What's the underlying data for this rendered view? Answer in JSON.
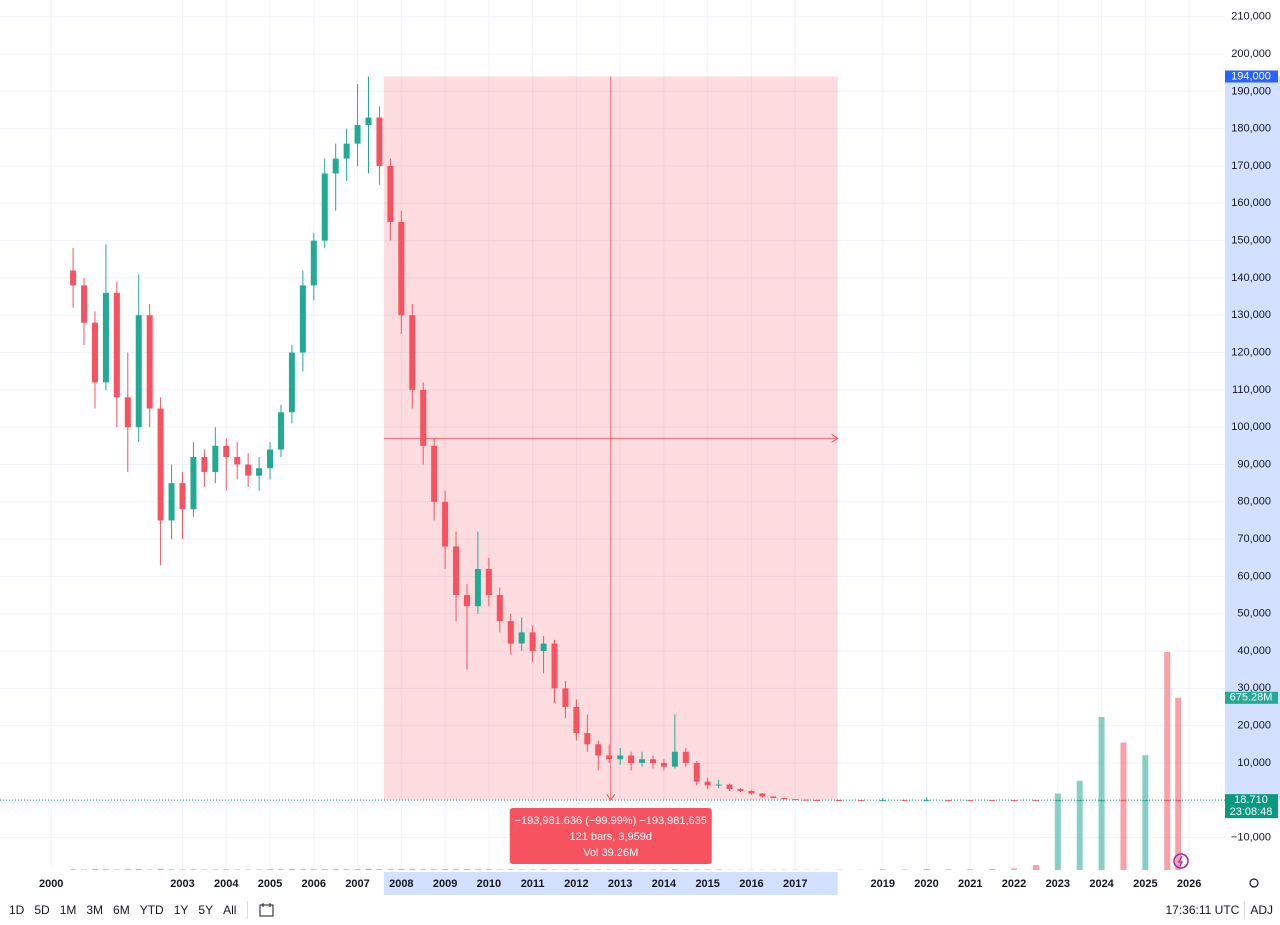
{
  "chart_data": {
    "type": "candlestick",
    "xlim": [
      1998.83,
      2026.82
    ],
    "ylim": [
      -18700,
      214500
    ],
    "vlim": [
      0,
      1000
    ],
    "grid": true,
    "up_color": "#22ab94",
    "down_color": "#f7525f",
    "xticks": [
      2000,
      2003,
      2004,
      2005,
      2006,
      2007,
      2008,
      2009,
      2010,
      2011,
      2012,
      2013,
      2014,
      2015,
      2016,
      2017,
      2019,
      2020,
      2021,
      2022,
      2023,
      2024,
      2025,
      2026
    ],
    "yticks": [
      {
        "value": 210000,
        "label": "210,000"
      },
      {
        "value": 200000,
        "label": "200,000"
      },
      {
        "value": 190000,
        "label": "190,000"
      },
      {
        "value": 180000,
        "label": "180,000"
      },
      {
        "value": 170000,
        "label": "170,000"
      },
      {
        "value": 160000,
        "label": "160,000"
      },
      {
        "value": 150000,
        "label": "150,000"
      },
      {
        "value": 140000,
        "label": "140,000"
      },
      {
        "value": 130000,
        "label": "130,000"
      },
      {
        "value": 120000,
        "label": "120,000"
      },
      {
        "value": 110000,
        "label": "110,000"
      },
      {
        "value": 100000,
        "label": "100,000"
      },
      {
        "value": 90000,
        "label": "90,000"
      },
      {
        "value": 80000,
        "label": "80,000"
      },
      {
        "value": 70000,
        "label": "70,000"
      },
      {
        "value": 60000,
        "label": "60,000"
      },
      {
        "value": 50000,
        "label": "50,000"
      },
      {
        "value": 40000,
        "label": "40,000"
      },
      {
        "value": 30000,
        "label": "30,000"
      },
      {
        "value": 20000,
        "label": "20,000"
      },
      {
        "value": 10000,
        "label": "10,000"
      },
      {
        "value": -10000,
        "label": "−10,000"
      }
    ],
    "x": [
      2000.5,
      2000.75,
      2001,
      2001.25,
      2001.5,
      2001.75,
      2002,
      2002.25,
      2002.5,
      2002.75,
      2003,
      2003.25,
      2003.5,
      2003.75,
      2004,
      2004.25,
      2004.5,
      2004.75,
      2005,
      2005.25,
      2005.5,
      2005.75,
      2006,
      2006.25,
      2006.5,
      2006.75,
      2007,
      2007.25,
      2007.5,
      2007.75,
      2008,
      2008.25,
      2008.5,
      2008.75,
      2009,
      2009.25,
      2009.5,
      2009.75,
      2010,
      2010.25,
      2010.5,
      2010.75,
      2011,
      2011.25,
      2011.5,
      2011.75,
      2012,
      2012.25,
      2012.5,
      2012.75,
      2013,
      2013.25,
      2013.5,
      2013.75,
      2014,
      2014.25,
      2014.5,
      2014.75,
      2015,
      2015.25,
      2015.5,
      2015.75,
      2016,
      2016.25,
      2016.5,
      2016.75,
      2017,
      2017.25,
      2017.5,
      2018,
      2018.5,
      2019,
      2019.5,
      2020,
      2020.5,
      2021,
      2021.5,
      2022,
      2022.5,
      2023,
      2023.5,
      2024,
      2024.5,
      2025,
      2025.5,
      2025.75
    ],
    "open": [
      142000,
      138000,
      128000,
      112000,
      136000,
      108000,
      100000,
      130000,
      105000,
      75000,
      85000,
      78000,
      92000,
      88000,
      95000,
      92000,
      90000,
      87000,
      89000,
      94000,
      104000,
      120000,
      138000,
      150000,
      168000,
      172000,
      176000,
      181000,
      183000,
      170000,
      155000,
      130000,
      110000,
      95000,
      80000,
      68000,
      55000,
      52000,
      62000,
      55000,
      48000,
      42000,
      45000,
      40000,
      42000,
      30000,
      25000,
      18000,
      15000,
      12000,
      11000,
      12000,
      10000,
      11000,
      10000,
      9000,
      13000,
      10000,
      5000,
      4000,
      4200,
      3000,
      2500,
      1800,
      1000,
      600,
      300,
      150,
      80,
      50,
      30,
      20,
      25,
      18,
      22,
      12,
      10,
      8,
      6,
      5,
      9,
      11,
      18,
      15,
      24,
      20
    ],
    "high": [
      148000,
      140000,
      131000,
      149000,
      139000,
      120000,
      141000,
      133000,
      108000,
      90000,
      88000,
      96000,
      94000,
      100000,
      97000,
      96000,
      93000,
      92000,
      96000,
      106000,
      122000,
      142000,
      152000,
      172000,
      176000,
      180000,
      192000,
      194000,
      186000,
      172000,
      158000,
      133000,
      112000,
      97000,
      83000,
      72000,
      58000,
      72000,
      65000,
      57000,
      50000,
      49000,
      47000,
      44000,
      43000,
      32000,
      27000,
      23000,
      16000,
      15000,
      14000,
      13000,
      13000,
      12000,
      11000,
      23000,
      14000,
      10500,
      6000,
      5500,
      4500,
      3200,
      2700,
      1900,
      1100,
      700,
      350,
      160,
      90,
      60,
      40,
      600,
      30,
      800,
      25,
      15,
      12,
      10,
      9,
      12,
      14,
      22,
      25,
      30,
      40,
      26
    ],
    "low": [
      132000,
      122000,
      105000,
      110000,
      100000,
      88000,
      96000,
      100000,
      63000,
      70000,
      70000,
      76000,
      84000,
      85000,
      83000,
      86000,
      84000,
      83000,
      86000,
      92000,
      101000,
      115000,
      134000,
      148000,
      158000,
      166000,
      170000,
      168000,
      165000,
      150000,
      125000,
      105000,
      90000,
      75000,
      62000,
      48000,
      35000,
      50000,
      52000,
      45000,
      39000,
      40000,
      37000,
      34000,
      26000,
      22000,
      16000,
      13000,
      8000,
      10000,
      9500,
      8000,
      9000,
      8500,
      8000,
      8500,
      9000,
      4000,
      3000,
      3200,
      2500,
      2200,
      1500,
      800,
      500,
      250,
      120,
      60,
      30,
      20,
      15,
      15,
      12,
      10,
      8,
      6,
      5,
      4,
      3,
      4,
      6,
      9,
      12,
      11,
      16,
      14
    ],
    "close": [
      138000,
      128000,
      112000,
      136000,
      108000,
      100000,
      130000,
      105000,
      75000,
      85000,
      78000,
      92000,
      88000,
      95000,
      92000,
      90000,
      87000,
      89000,
      94000,
      104000,
      120000,
      138000,
      150000,
      168000,
      172000,
      176000,
      181000,
      183000,
      170000,
      155000,
      130000,
      110000,
      95000,
      80000,
      68000,
      55000,
      52000,
      62000,
      55000,
      48000,
      42000,
      45000,
      40000,
      42000,
      30000,
      25000,
      18000,
      15000,
      12000,
      11000,
      12000,
      10000,
      11000,
      10000,
      9000,
      13000,
      10000,
      5000,
      4000,
      4200,
      3000,
      2500,
      1800,
      1000,
      600,
      300,
      150,
      80,
      50,
      30,
      20,
      25,
      18,
      22,
      12,
      10,
      8,
      6,
      5,
      9,
      11,
      18,
      15,
      24,
      20,
      18.71
    ],
    "volume": [
      3,
      2,
      4,
      3,
      2,
      3,
      4,
      2,
      5,
      3,
      2,
      3,
      2,
      2,
      3,
      2,
      2,
      2,
      3,
      3,
      4,
      3,
      3,
      4,
      3,
      3,
      4,
      5,
      4,
      3,
      4,
      4,
      3,
      3,
      4,
      3,
      4,
      3,
      3,
      2,
      3,
      2,
      2,
      3,
      2,
      2,
      3,
      2,
      2,
      2,
      2,
      2,
      2,
      2,
      2,
      3,
      2,
      2,
      2,
      2,
      1,
      1,
      1,
      1,
      1,
      1,
      1,
      1,
      1,
      1,
      1,
      3,
      2,
      4,
      3,
      3,
      4,
      6,
      20,
      300,
      350,
      600,
      500,
      450,
      855,
      675.28
    ],
    "price_labels": [
      {
        "value": 194000,
        "label": "194,000",
        "color": "#2962ff"
      },
      {
        "value": 18.71,
        "label": "18.710",
        "color": "#089981",
        "countdown": "23:08:48"
      }
    ],
    "volume_label": {
      "value": 675.28,
      "label": "675.28M",
      "color": "#22ab94"
    },
    "measure": {
      "x": [
        2007.6,
        2017.97
      ],
      "lines": [
        "−193,981.636 (−99.99%) −193,981,635",
        "121 bars, 3,959d",
        "Vol 39.26M"
      ]
    }
  },
  "toolbar": {
    "ranges": [
      "1D",
      "5D",
      "1M",
      "3M",
      "6M",
      "YTD",
      "1Y",
      "5Y",
      "All"
    ],
    "clock": "17:36:11 UTC",
    "adj": "ADJ"
  }
}
